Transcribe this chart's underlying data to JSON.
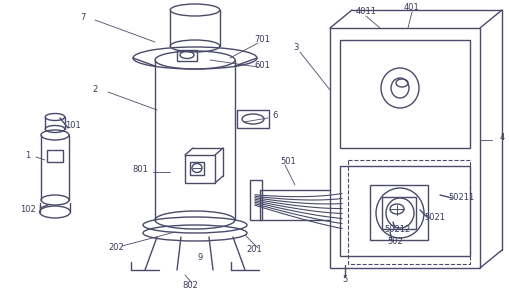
{
  "background_color": "#ffffff",
  "line_color": "#4a4a6a",
  "line_width": 1.0,
  "text_color": "#3a3a5a",
  "font_size": 6.0
}
